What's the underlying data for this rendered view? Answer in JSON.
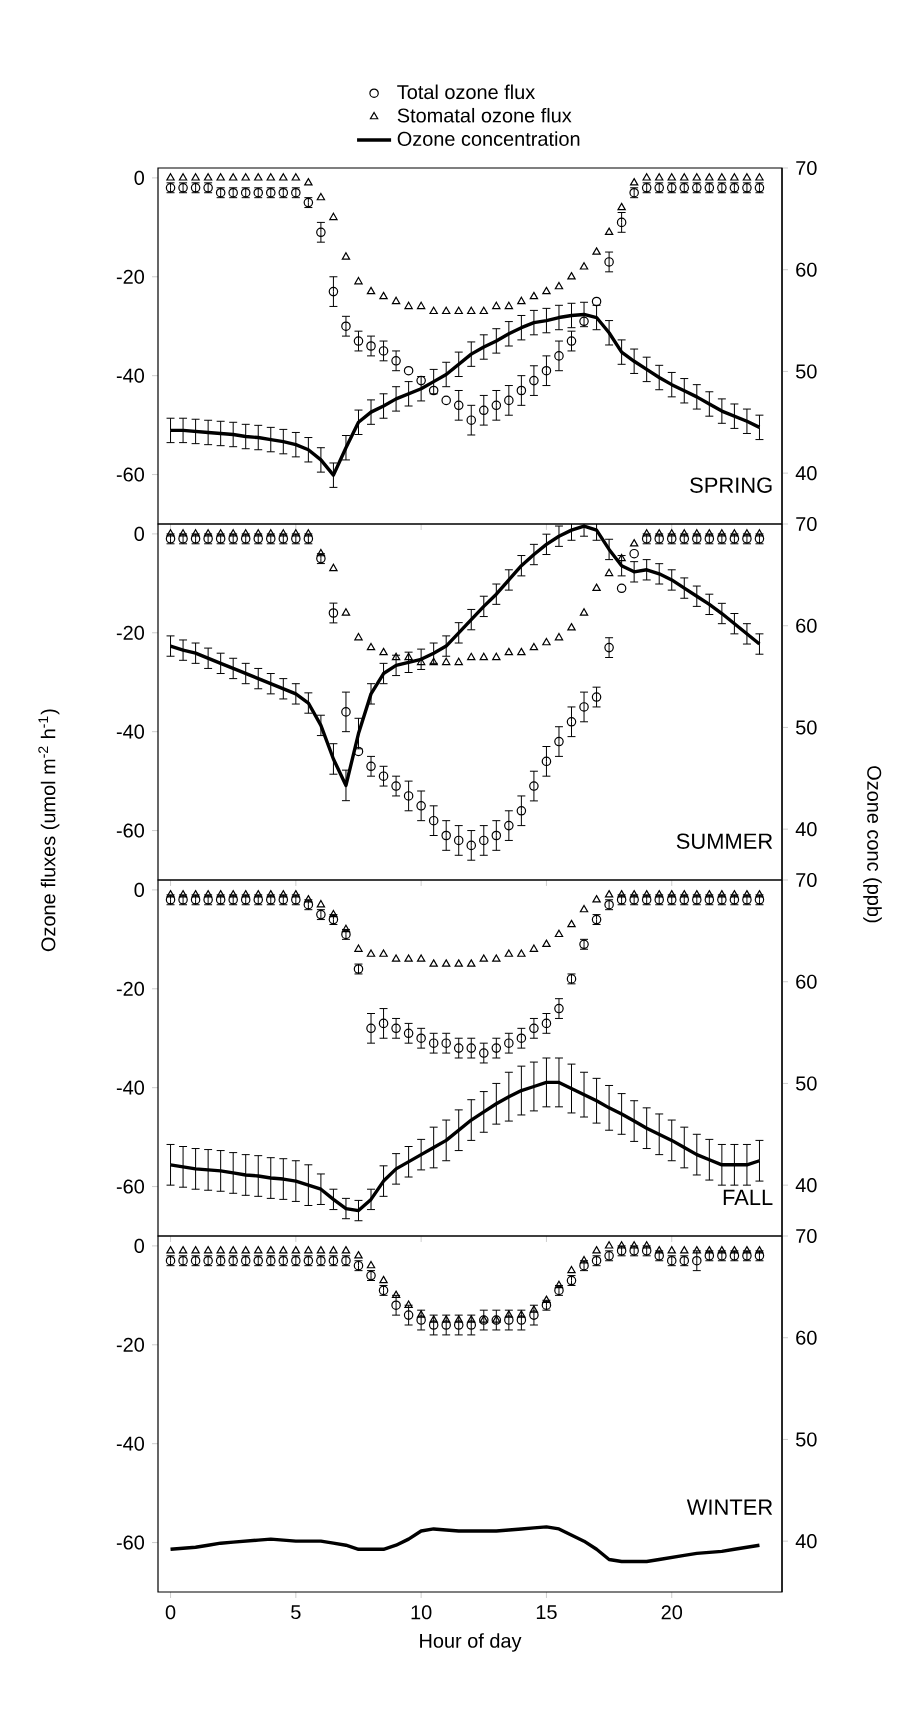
{
  "chart_data": [
    {
      "type": "scatter",
      "legend": "top",
      "tick_labels": "y",
      "annotations": [
        "SPRING"
      ],
      "x": [
        0,
        0.5,
        1,
        1.5,
        2,
        2.5,
        3,
        3.5,
        4,
        4.5,
        5,
        5.5,
        6,
        6.5,
        7,
        7.5,
        8,
        8.5,
        9,
        9.5,
        10,
        10.5,
        11,
        11.5,
        12,
        12.5,
        13,
        13.5,
        14,
        14.5,
        15,
        15.5,
        16,
        16.5,
        17,
        17.5,
        18,
        18.5,
        19,
        19.5,
        20,
        20.5,
        21,
        21.5,
        22,
        22.5,
        23,
        23.5
      ],
      "xlim": [
        -0.5,
        24.4
      ],
      "xticks": [
        0,
        5,
        10,
        15,
        20
      ],
      "ylim": [
        -70,
        2
      ],
      "yticks": [
        0,
        -20,
        -40,
        -60
      ],
      "y2lim": [
        35,
        70
      ],
      "y2ticks": [
        40,
        50,
        60,
        70
      ],
      "series": [
        {
          "name": "Total ozone flux",
          "color": "#000000",
          "marker": "circle",
          "values": [
            -2,
            -2,
            -2,
            -2,
            -3,
            -3,
            -3,
            -3,
            -3,
            -3,
            -3,
            -5,
            -11,
            -23,
            -30,
            -33,
            -34,
            -35,
            -37,
            -39,
            -41,
            -43,
            -45,
            -46,
            -49,
            -47,
            -46,
            -45,
            -43,
            -41,
            -39,
            -36,
            -33,
            -29,
            -25,
            -17,
            -9,
            -3,
            -2,
            -2,
            -2,
            -2,
            -2,
            -2,
            -2,
            -2,
            -2,
            -2
          ],
          "errors": [
            1,
            1,
            1,
            1,
            1,
            1,
            1,
            1,
            1,
            1,
            1,
            1,
            2,
            3,
            2,
            2,
            2,
            2,
            2,
            null,
            null,
            null,
            null,
            3,
            3,
            3,
            3,
            3,
            3,
            3,
            3,
            3,
            2,
            null,
            null,
            2,
            2,
            1,
            1,
            1,
            1,
            1,
            1,
            1,
            1,
            1,
            1,
            1
          ]
        },
        {
          "name": "Stomatal ozone flux",
          "color": "#000000",
          "marker": "triangle",
          "values": [
            0,
            0,
            0,
            0,
            0,
            0,
            0,
            0,
            0,
            0,
            0,
            -1,
            -4,
            -8,
            -16,
            -21,
            -23,
            -24,
            -25,
            -26,
            -26,
            -27,
            -27,
            -27,
            -27,
            -27,
            -26,
            -26,
            -25,
            -24,
            -23,
            -22,
            -20,
            -18,
            -15,
            -11,
            -6,
            -1,
            0,
            0,
            0,
            0,
            0,
            0,
            0,
            0,
            0,
            0
          ]
        },
        {
          "name": "Ozone concentration",
          "color": "#000000",
          "type": "line",
          "axis": "y2",
          "line_style": "solid",
          "values": [
            44.2,
            44.2,
            44.1,
            44,
            43.9,
            43.8,
            43.6,
            43.5,
            43.3,
            43.1,
            42.8,
            42.3,
            41.3,
            39.8,
            42.5,
            45,
            46,
            46.6,
            47.3,
            47.8,
            48.3,
            49,
            49.7,
            50.7,
            51.7,
            52.4,
            53,
            53.7,
            54.3,
            54.8,
            55,
            55.3,
            55.5,
            55.6,
            55.3,
            53.8,
            51.9,
            51,
            50.2,
            49.4,
            48.7,
            48.1,
            47.5,
            46.8,
            46.1,
            45.6,
            45.1,
            44.5
          ],
          "errors": [
            1.2,
            1.2,
            1.2,
            1.2,
            1.2,
            1.2,
            1.2,
            1.2,
            1.2,
            1.2,
            1.2,
            1.2,
            1.2,
            1.2,
            1.2,
            1.2,
            1.2,
            1.2,
            1.2,
            1.2,
            1.2,
            1.2,
            1.2,
            1.2,
            1.2,
            1.2,
            1.2,
            1.2,
            1.2,
            1.2,
            1.2,
            1.2,
            1.2,
            1.2,
            1.2,
            1.2,
            1.2,
            1.2,
            1.2,
            1.2,
            1.2,
            1.2,
            1.2,
            1.2,
            1.2,
            1.2,
            1.2,
            1.2
          ]
        }
      ]
    },
    {
      "type": "scatter",
      "tick_labels": "y",
      "annotations": [
        "SUMMER"
      ],
      "ylabel": "Ozone fluxes (umol m$^{-2}$ h$^{-1}$)",
      "y2label": "Ozone conc (ppb)",
      "x": [
        0,
        0.5,
        1,
        1.5,
        2,
        2.5,
        3,
        3.5,
        4,
        4.5,
        5,
        5.5,
        6,
        6.5,
        7,
        7.5,
        8,
        8.5,
        9,
        9.5,
        10,
        10.5,
        11,
        11.5,
        12,
        12.5,
        13,
        13.5,
        14,
        14.5,
        15,
        15.5,
        16,
        16.5,
        17,
        17.5,
        18,
        18.5,
        19,
        19.5,
        20,
        20.5,
        21,
        21.5,
        22,
        22.5,
        23,
        23.5
      ],
      "xlim": [
        -0.5,
        24.4
      ],
      "xticks": [
        0,
        5,
        10,
        15,
        20
      ],
      "ylim": [
        -70,
        2
      ],
      "yticks": [
        0,
        -20,
        -40,
        -60
      ],
      "y2lim": [
        35,
        70
      ],
      "y2ticks": [
        40,
        50,
        60,
        70
      ],
      "series": [
        {
          "color": "#000000",
          "marker": "circle",
          "values": [
            -1,
            -1,
            -1,
            -1,
            -1,
            -1,
            -1,
            -1,
            -1,
            -1,
            -1,
            -1,
            -5,
            -16,
            -36,
            -44,
            -47,
            -49,
            -51,
            -53,
            -55,
            -58,
            -61,
            -62,
            -63,
            -62,
            -61,
            -59,
            -56,
            -51,
            -46,
            -42,
            -38,
            -35,
            -33,
            -23,
            -11,
            -4,
            -1,
            -1,
            -1,
            -1,
            -1,
            -1,
            -1,
            -1,
            -1,
            -1
          ],
          "errors": [
            1,
            1,
            1,
            1,
            1,
            1,
            1,
            1,
            1,
            1,
            1,
            1,
            1,
            2,
            4,
            null,
            2,
            2,
            2,
            3,
            3,
            3,
            3,
            3,
            3,
            3,
            3,
            3,
            3,
            3,
            3,
            3,
            3,
            3,
            2,
            2,
            null,
            null,
            1,
            1,
            1,
            1,
            1,
            1,
            1,
            1,
            1,
            1
          ]
        },
        {
          "color": "#000000",
          "marker": "triangle",
          "values": [
            0,
            0,
            0,
            0,
            0,
            0,
            0,
            0,
            0,
            0,
            0,
            0,
            -4,
            -7,
            -16,
            -21,
            -23,
            -24,
            -25,
            -25,
            -26,
            -26,
            -26,
            -26,
            -25,
            -25,
            -25,
            -24,
            -24,
            -23,
            -22,
            -21,
            -19,
            -16,
            -11,
            -8,
            -5,
            -2,
            0,
            0,
            0,
            0,
            0,
            0,
            0,
            0,
            0,
            0
          ]
        },
        {
          "color": "#000000",
          "type": "line",
          "axis": "y2",
          "line_style": "solid",
          "values": [
            58,
            57.6,
            57.3,
            56.8,
            56.3,
            55.8,
            55.3,
            54.8,
            54.3,
            53.8,
            53.3,
            52.4,
            50.2,
            46.9,
            44.3,
            49.4,
            53.3,
            55.3,
            56.1,
            56.4,
            56.7,
            57.3,
            58,
            59.3,
            60.6,
            61.9,
            63.1,
            64.5,
            65.9,
            67,
            68,
            68.8,
            69.4,
            69.8,
            69.4,
            67.5,
            65.9,
            65.3,
            65.5,
            65.1,
            64.5,
            63.7,
            62.9,
            62.1,
            61.2,
            60.2,
            59.2,
            58.2
          ],
          "errors": [
            1,
            1,
            1,
            1,
            1,
            1,
            1,
            1,
            1,
            1,
            1,
            1,
            1,
            1.5,
            1.5,
            1.5,
            1,
            1,
            1,
            1,
            1,
            1,
            1,
            1,
            1,
            1,
            1,
            1,
            1,
            1,
            1,
            1,
            1,
            1,
            1,
            1,
            1,
            1,
            1,
            1,
            1,
            1,
            1,
            1,
            1,
            1,
            1,
            1
          ]
        }
      ]
    },
    {
      "type": "scatter",
      "tick_labels": "y",
      "annotations": [
        "FALL"
      ],
      "x": [
        0,
        0.5,
        1,
        1.5,
        2,
        2.5,
        3,
        3.5,
        4,
        4.5,
        5,
        5.5,
        6,
        6.5,
        7,
        7.5,
        8,
        8.5,
        9,
        9.5,
        10,
        10.5,
        11,
        11.5,
        12,
        12.5,
        13,
        13.5,
        14,
        14.5,
        15,
        15.5,
        16,
        16.5,
        17,
        17.5,
        18,
        18.5,
        19,
        19.5,
        20,
        20.5,
        21,
        21.5,
        22,
        22.5,
        23,
        23.5
      ],
      "xlim": [
        -0.5,
        24.4
      ],
      "xticks": [
        0,
        5,
        10,
        15,
        20
      ],
      "ylim": [
        -70,
        2
      ],
      "yticks": [
        0,
        -20,
        -40,
        -60
      ],
      "y2lim": [
        35,
        70
      ],
      "y2ticks": [
        40,
        50,
        60,
        70
      ],
      "series": [
        {
          "color": "#000000",
          "marker": "circle",
          "values": [
            -2,
            -2,
            -2,
            -2,
            -2,
            -2,
            -2,
            -2,
            -2,
            -2,
            -2,
            -3,
            -5,
            -6,
            -9,
            -16,
            -28,
            -27,
            -28,
            -29,
            -30,
            -31,
            -31,
            -32,
            -32,
            -33,
            -32,
            -31,
            -30,
            -28,
            -27,
            -24,
            -18,
            -11,
            -6,
            -3,
            -2,
            -2,
            -2,
            -2,
            -2,
            -2,
            -2,
            -2,
            -2,
            -2,
            -2,
            -2
          ],
          "errors": [
            1,
            1,
            1,
            1,
            1,
            1,
            1,
            1,
            1,
            1,
            1,
            1,
            1,
            1,
            1,
            1,
            3,
            3,
            2,
            2,
            2,
            2,
            2,
            2,
            2,
            2,
            2,
            2,
            2,
            2,
            2,
            2,
            1,
            1,
            1,
            1,
            1,
            1,
            1,
            1,
            1,
            1,
            1,
            1,
            1,
            1,
            1,
            1
          ]
        },
        {
          "color": "#000000",
          "marker": "triangle",
          "values": [
            -1,
            -1,
            -1,
            -1,
            -1,
            -1,
            -1,
            -1,
            -1,
            -1,
            -1,
            -2,
            -3,
            -5,
            -8,
            -12,
            -13,
            -13,
            -14,
            -14,
            -14,
            -15,
            -15,
            -15,
            -15,
            -14,
            -14,
            -13,
            -13,
            -12,
            -11,
            -9,
            -7,
            -4,
            -2,
            -1,
            -1,
            -1,
            -1,
            -1,
            -1,
            -1,
            -1,
            -1,
            -1,
            -1,
            -1,
            -1
          ]
        },
        {
          "color": "#000000",
          "type": "line",
          "axis": "y2",
          "line_style": "solid",
          "values": [
            42,
            41.8,
            41.6,
            41.5,
            41.4,
            41.2,
            41,
            40.9,
            40.7,
            40.6,
            40.4,
            40,
            39.6,
            38.6,
            37.7,
            37.5,
            38.6,
            40.4,
            41.6,
            42.3,
            43,
            43.7,
            44.4,
            45.4,
            46.4,
            47.2,
            48,
            48.7,
            49.3,
            49.7,
            50.1,
            50.1,
            49.5,
            48.9,
            48.3,
            47.6,
            47,
            46.3,
            45.6,
            45,
            44.4,
            43.7,
            43,
            42.5,
            42,
            42,
            42,
            42.4
          ],
          "errors": [
            2,
            2,
            2,
            2,
            2,
            2,
            2,
            2,
            2,
            2,
            2,
            2,
            1.5,
            1,
            1,
            1,
            1,
            1.5,
            1.5,
            1.5,
            1.5,
            2,
            2,
            2,
            2,
            2,
            2,
            2.4,
            2.4,
            2.4,
            2.4,
            2.4,
            2.4,
            2.2,
            2.2,
            2.2,
            2,
            2,
            2,
            2,
            2,
            2,
            2,
            2,
            2,
            2,
            2,
            2
          ]
        }
      ]
    },
    {
      "type": "scatter",
      "annotations": [
        "WINTER"
      ],
      "xlabel": "Hour of day",
      "x": [
        0,
        0.5,
        1,
        1.5,
        2,
        2.5,
        3,
        3.5,
        4,
        4.5,
        5,
        5.5,
        6,
        6.5,
        7,
        7.5,
        8,
        8.5,
        9,
        9.5,
        10,
        10.5,
        11,
        11.5,
        12,
        12.5,
        13,
        13.5,
        14,
        14.5,
        15,
        15.5,
        16,
        16.5,
        17,
        17.5,
        18,
        18.5,
        19,
        19.5,
        20,
        20.5,
        21,
        21.5,
        22,
        22.5,
        23,
        23.5
      ],
      "xlim": [
        -0.5,
        24.4
      ],
      "xticks": [
        0,
        5,
        10,
        15,
        20
      ],
      "ylim": [
        -70,
        2
      ],
      "yticks": [
        0,
        -20,
        -40,
        -60
      ],
      "y2lim": [
        35,
        70
      ],
      "y2ticks": [
        40,
        50,
        60,
        70
      ],
      "series": [
        {
          "color": "#000000",
          "marker": "circle",
          "values": [
            -3,
            -3,
            -3,
            -3,
            -3,
            -3,
            -3,
            -3,
            -3,
            -3,
            -3,
            -3,
            -3,
            -3,
            -3,
            -4,
            -6,
            -9,
            -12,
            -14,
            -15,
            -16,
            -16,
            -16,
            -16,
            -15,
            -15,
            -15,
            -15,
            -14,
            -12,
            -9,
            -7,
            -4,
            -3,
            -2,
            -1,
            -1,
            -1,
            -2,
            -3,
            -3,
            -3,
            -2,
            -2,
            -2,
            -2,
            -2
          ],
          "errors": [
            1,
            1,
            1,
            1,
            1,
            1,
            1,
            1,
            1,
            1,
            1,
            1,
            1,
            1,
            1,
            1,
            1,
            1,
            2,
            2,
            2,
            2,
            2,
            2,
            2,
            2,
            2,
            2,
            2,
            2,
            1,
            1,
            1,
            1,
            1,
            1,
            1,
            1,
            1,
            1,
            1,
            1,
            2,
            1,
            1,
            1,
            1,
            1
          ]
        },
        {
          "color": "#000000",
          "marker": "triangle",
          "values": [
            -1,
            -1,
            -1,
            -1,
            -1,
            -1,
            -1,
            -1,
            -1,
            -1,
            -1,
            -1,
            -1,
            -1,
            -1,
            -2,
            -4,
            -7,
            -10,
            -12,
            -14,
            -15,
            -15,
            -15,
            -15,
            -15,
            -15,
            -14,
            -14,
            -13,
            -11,
            -8,
            -5,
            -3,
            -1,
            0,
            0,
            0,
            0,
            -1,
            -1,
            -1,
            -1,
            -1,
            -1,
            -1,
            -1,
            -1
          ]
        },
        {
          "color": "#000000",
          "type": "line",
          "axis": "y2",
          "line_style": "solid",
          "values": [
            39.2,
            39.3,
            39.4,
            39.6,
            39.8,
            39.9,
            40,
            40.1,
            40.2,
            40.1,
            40,
            40,
            40,
            39.8,
            39.6,
            39.2,
            39.2,
            39.2,
            39.6,
            40.2,
            41,
            41.2,
            41.1,
            41,
            41,
            41,
            41,
            41.1,
            41.2,
            41.3,
            41.4,
            41.2,
            40.6,
            40,
            39.2,
            38.2,
            38,
            38,
            38,
            38.2,
            38.4,
            38.6,
            38.8,
            38.9,
            39,
            39.2,
            39.4,
            39.6
          ]
        }
      ]
    }
  ]
}
